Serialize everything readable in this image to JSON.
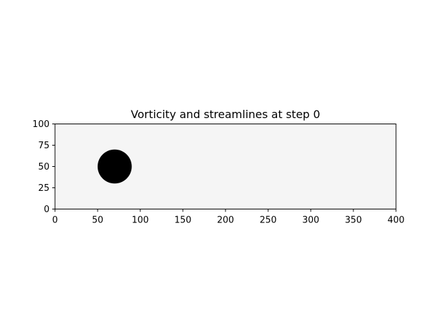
{
  "chart_data": {
    "type": "heatmap",
    "title": "Vorticity and streamlines at step 0",
    "xlabel": "",
    "ylabel": "",
    "xlim": [
      0,
      400
    ],
    "ylim": [
      0,
      100
    ],
    "xticks": [
      0,
      50,
      100,
      150,
      200,
      250,
      300,
      350,
      400
    ],
    "yticks": [
      0,
      25,
      50,
      75,
      100
    ],
    "grid": false,
    "background_value_color": "#f5f5f5",
    "obstacle": {
      "shape": "circle",
      "center_x": 70,
      "center_y": 50,
      "radius": 20,
      "color": "#000000"
    }
  }
}
